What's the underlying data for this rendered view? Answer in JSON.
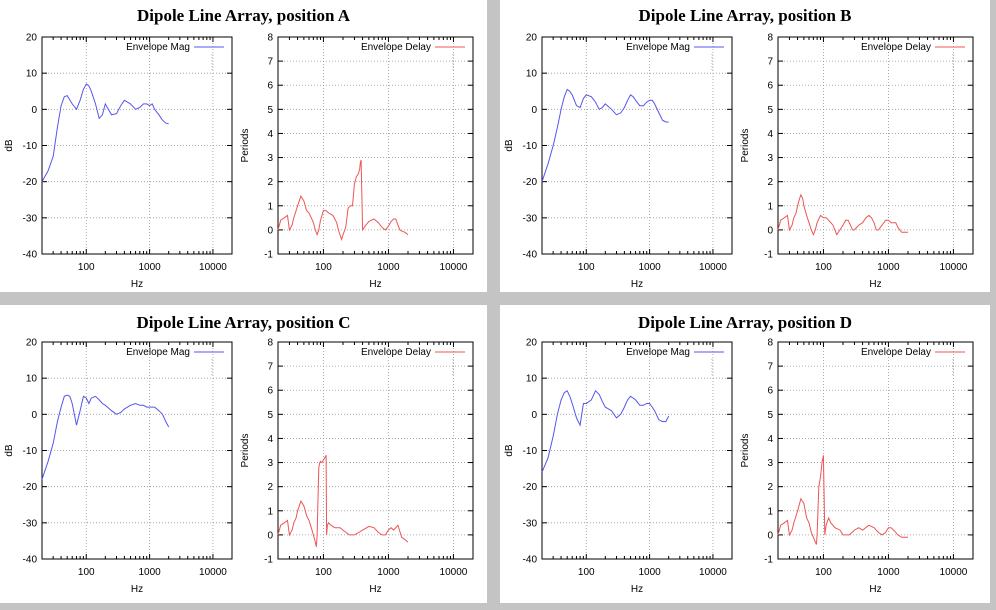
{
  "colors": {
    "mag": "#5555ee",
    "delay": "#ee5555",
    "grid": "#9a9a9a",
    "axis": "#000000"
  },
  "chart_data": [
    {
      "panel_title": "Dipole Line Array, position A",
      "charts": [
        {
          "type": "line",
          "xscale": "log",
          "xlim": [
            20,
            20000
          ],
          "ylim": [
            -40,
            20
          ],
          "yticks": [
            -40,
            -30,
            -20,
            -10,
            0,
            10,
            20
          ],
          "xticks": [
            100,
            1000,
            10000
          ],
          "xlabel": "Hz",
          "ylabel": "dB",
          "legend": "Envelope Mag",
          "color": "mag",
          "x": [
            20,
            25,
            30,
            35,
            40,
            45,
            50,
            60,
            70,
            80,
            90,
            100,
            110,
            120,
            140,
            160,
            180,
            200,
            250,
            300,
            350,
            400,
            500,
            600,
            700,
            800,
            900,
            1000,
            1100,
            1200,
            1400,
            1600,
            1800,
            2000
          ],
          "y": [
            -20,
            -17,
            -13,
            -5,
            1,
            3.5,
            3.8,
            1.5,
            0,
            2.5,
            5.5,
            7,
            6.5,
            5,
            1.5,
            -2.5,
            -1.5,
            1.5,
            -1.5,
            -1.2,
            1,
            2.5,
            1.5,
            0,
            0.5,
            1.5,
            1.5,
            1,
            1.5,
            0,
            -1.5,
            -3,
            -3.8,
            -4
          ]
        },
        {
          "type": "line",
          "xscale": "log",
          "xlim": [
            20,
            20000
          ],
          "ylim": [
            -1,
            8
          ],
          "yticks": [
            -1,
            0,
            1,
            2,
            3,
            4,
            5,
            6,
            7,
            8
          ],
          "xticks": [
            100,
            1000,
            10000
          ],
          "xlabel": "Hz",
          "ylabel": "Periods",
          "legend": "Envelope Delay",
          "color": "delay",
          "x": [
            20,
            22,
            25,
            28,
            30,
            33,
            35,
            38,
            40,
            45,
            50,
            55,
            60,
            65,
            70,
            75,
            80,
            85,
            90,
            95,
            100,
            110,
            120,
            140,
            160,
            170,
            180,
            190,
            200,
            220,
            240,
            260,
            280,
            300,
            320,
            340,
            360,
            370,
            380,
            400,
            450,
            500,
            550,
            600,
            700,
            800,
            900,
            1000,
            1100,
            1200,
            1300,
            1400,
            1500,
            1600,
            1800,
            2000
          ],
          "y": [
            0,
            0.4,
            0.5,
            0.6,
            0,
            0.2,
            0.5,
            0.8,
            1.0,
            1.4,
            1.2,
            0.8,
            0.7,
            0.5,
            0.3,
            0,
            -0.2,
            0,
            0.4,
            0.6,
            0.8,
            0.8,
            0.7,
            0.6,
            0.3,
            0,
            -0.2,
            -0.4,
            -0.2,
            0.1,
            0.9,
            1.0,
            1.0,
            1.9,
            2.2,
            2.3,
            2.5,
            2.8,
            2.9,
            0,
            0.2,
            0.35,
            0.4,
            0.45,
            0.3,
            0.1,
            0,
            0.15,
            0.35,
            0.45,
            0.45,
            0.2,
            0,
            -0.05,
            -0.1,
            -0.2
          ]
        }
      ]
    },
    {
      "panel_title": "Dipole Line Array, position B",
      "charts": [
        {
          "type": "line",
          "xscale": "log",
          "xlim": [
            20,
            20000
          ],
          "ylim": [
            -40,
            20
          ],
          "yticks": [
            -40,
            -30,
            -20,
            -10,
            0,
            10,
            20
          ],
          "xticks": [
            100,
            1000,
            10000
          ],
          "xlabel": "Hz",
          "ylabel": "dB",
          "legend": "Envelope Mag",
          "color": "mag",
          "x": [
            20,
            25,
            30,
            35,
            40,
            45,
            50,
            55,
            60,
            70,
            80,
            90,
            100,
            120,
            140,
            160,
            180,
            200,
            250,
            300,
            350,
            400,
            450,
            500,
            550,
            600,
            700,
            800,
            900,
            1000,
            1100,
            1200,
            1400,
            1600,
            1800,
            2000
          ],
          "y": [
            -20,
            -15,
            -10,
            -5,
            0,
            3.5,
            5.5,
            5,
            4,
            1,
            0.5,
            3,
            4,
            3.5,
            2,
            0,
            0.5,
            1.5,
            0,
            -1.5,
            -1,
            0.5,
            2.5,
            4,
            3.5,
            2.5,
            1,
            1,
            2,
            2.5,
            2.5,
            1.5,
            -1,
            -3,
            -3.5,
            -3.5
          ]
        },
        {
          "type": "line",
          "xscale": "log",
          "xlim": [
            20,
            20000
          ],
          "ylim": [
            -1,
            8
          ],
          "yticks": [
            -1,
            0,
            1,
            2,
            3,
            4,
            5,
            6,
            7,
            8
          ],
          "xticks": [
            100,
            1000,
            10000
          ],
          "xlabel": "Hz",
          "ylabel": "Periods",
          "legend": "Envelope Delay",
          "color": "delay",
          "x": [
            20,
            22,
            25,
            28,
            30,
            33,
            35,
            38,
            40,
            43,
            45,
            48,
            50,
            55,
            60,
            65,
            70,
            75,
            80,
            90,
            100,
            110,
            120,
            130,
            140,
            150,
            160,
            180,
            200,
            220,
            240,
            260,
            280,
            300,
            350,
            400,
            450,
            500,
            550,
            600,
            650,
            700,
            800,
            900,
            1000,
            1100,
            1200,
            1300,
            1400,
            1500,
            1600,
            1800,
            2000
          ],
          "y": [
            0,
            0.4,
            0.5,
            0.6,
            0,
            0.2,
            0.5,
            0.7,
            1.0,
            1.3,
            1.45,
            1.3,
            1.0,
            0.6,
            0.3,
            0,
            -0.2,
            0,
            0.3,
            0.6,
            0.5,
            0.5,
            0.4,
            0.3,
            0.2,
            0,
            -0.2,
            0,
            0.2,
            0.4,
            0.4,
            0.2,
            0,
            0,
            0.2,
            0.3,
            0.5,
            0.6,
            0.5,
            0.3,
            0,
            0,
            0.2,
            0.4,
            0.4,
            0.3,
            0.3,
            0.3,
            0.1,
            0,
            -0.1,
            -0.1,
            -0.1
          ]
        }
      ]
    },
    {
      "panel_title": "Dipole Line Array, position C",
      "charts": [
        {
          "type": "line",
          "xscale": "log",
          "xlim": [
            20,
            20000
          ],
          "ylim": [
            -40,
            20
          ],
          "yticks": [
            -40,
            -30,
            -20,
            -10,
            0,
            10,
            20
          ],
          "xticks": [
            100,
            1000,
            10000
          ],
          "xlabel": "Hz",
          "ylabel": "dB",
          "legend": "Envelope Mag",
          "color": "mag",
          "x": [
            20,
            25,
            30,
            35,
            40,
            45,
            50,
            55,
            60,
            70,
            80,
            90,
            100,
            110,
            120,
            140,
            160,
            180,
            200,
            250,
            300,
            350,
            400,
            500,
            600,
            700,
            800,
            900,
            1000,
            1200,
            1400,
            1600,
            1800,
            2000
          ],
          "y": [
            -18,
            -13,
            -8,
            -2,
            2,
            5,
            5.3,
            5,
            3,
            -3,
            1,
            5,
            4.5,
            3,
            4.5,
            5,
            4,
            3,
            2.5,
            1,
            0,
            0.5,
            1.5,
            2.5,
            3,
            2.5,
            2.5,
            2,
            2,
            2,
            1,
            0,
            -2,
            -3.5
          ]
        },
        {
          "type": "line",
          "xscale": "log",
          "xlim": [
            20,
            20000
          ],
          "ylim": [
            -1,
            8
          ],
          "yticks": [
            -1,
            0,
            1,
            2,
            3,
            4,
            5,
            6,
            7,
            8
          ],
          "xticks": [
            100,
            1000,
            10000
          ],
          "xlabel": "Hz",
          "ylabel": "Periods",
          "legend": "Envelope Delay",
          "color": "delay",
          "x": [
            20,
            22,
            25,
            28,
            30,
            33,
            35,
            38,
            40,
            45,
            50,
            55,
            60,
            65,
            70,
            75,
            78,
            80,
            85,
            88,
            90,
            95,
            100,
            105,
            110,
            112,
            115,
            120,
            130,
            150,
            180,
            200,
            250,
            300,
            350,
            400,
            500,
            600,
            700,
            800,
            900,
            1000,
            1100,
            1200,
            1400,
            1600,
            1800,
            2000
          ],
          "y": [
            0,
            0.4,
            0.5,
            0.6,
            0,
            0.2,
            0.5,
            0.7,
            1.0,
            1.4,
            1.2,
            0.8,
            0.6,
            0.3,
            0,
            -0.3,
            -0.5,
            0,
            2.8,
            3.0,
            3.05,
            3.0,
            3.1,
            3.2,
            3.3,
            0,
            0.4,
            0.5,
            0.4,
            0.3,
            0.3,
            0.2,
            0,
            0,
            0.1,
            0.2,
            0.35,
            0.3,
            0.1,
            0,
            0,
            0.2,
            0.3,
            0.2,
            0.4,
            -0.1,
            -0.2,
            -0.3
          ]
        }
      ]
    },
    {
      "panel_title": "Dipole Line Array, position D",
      "charts": [
        {
          "type": "line",
          "xscale": "log",
          "xlim": [
            20,
            20000
          ],
          "ylim": [
            -40,
            20
          ],
          "yticks": [
            -40,
            -30,
            -20,
            -10,
            0,
            10,
            20
          ],
          "xticks": [
            100,
            1000,
            10000
          ],
          "xlabel": "Hz",
          "ylabel": "dB",
          "legend": "Envelope Mag",
          "color": "mag",
          "x": [
            20,
            25,
            30,
            35,
            40,
            45,
            50,
            55,
            60,
            70,
            80,
            90,
            100,
            120,
            140,
            160,
            180,
            200,
            250,
            300,
            350,
            400,
            450,
            500,
            550,
            600,
            700,
            800,
            900,
            1000,
            1100,
            1200,
            1400,
            1600,
            1800,
            2000
          ],
          "y": [
            -16,
            -12,
            -6,
            0,
            4,
            6,
            6.5,
            5,
            3,
            -1,
            -3,
            3,
            3,
            4,
            6.5,
            5.5,
            3.5,
            2,
            1,
            -1,
            0,
            2,
            4,
            5,
            4.5,
            4,
            2.5,
            2.5,
            3,
            3,
            2,
            1,
            -1.5,
            -2,
            -2,
            -0.5
          ]
        },
        {
          "type": "line",
          "xscale": "log",
          "xlim": [
            20,
            20000
          ],
          "ylim": [
            -1,
            8
          ],
          "yticks": [
            -1,
            0,
            1,
            2,
            3,
            4,
            5,
            6,
            7,
            8
          ],
          "xticks": [
            100,
            1000,
            10000
          ],
          "xlabel": "Hz",
          "ylabel": "Periods",
          "legend": "Envelope Delay",
          "color": "delay",
          "x": [
            20,
            22,
            25,
            28,
            30,
            33,
            35,
            38,
            40,
            45,
            50,
            55,
            60,
            65,
            70,
            75,
            78,
            80,
            85,
            90,
            95,
            100,
            105,
            110,
            120,
            130,
            150,
            180,
            200,
            250,
            300,
            350,
            400,
            500,
            600,
            700,
            800,
            900,
            1000,
            1100,
            1200,
            1400,
            1600,
            1800,
            2000
          ],
          "y": [
            0,
            0.4,
            0.5,
            0.6,
            0,
            0.2,
            0.5,
            0.8,
            1.0,
            1.5,
            1.3,
            0.7,
            0.5,
            0.1,
            -0.1,
            -0.3,
            -0.4,
            0,
            2.0,
            2.4,
            3.0,
            3.3,
            0,
            0.4,
            0.7,
            0.5,
            0.3,
            0.2,
            0,
            0,
            0.2,
            0.3,
            0.2,
            0.4,
            0.3,
            0.1,
            0,
            0.1,
            0.3,
            0.3,
            0.2,
            0,
            -0.1,
            -0.1,
            -0.1
          ]
        }
      ]
    }
  ]
}
